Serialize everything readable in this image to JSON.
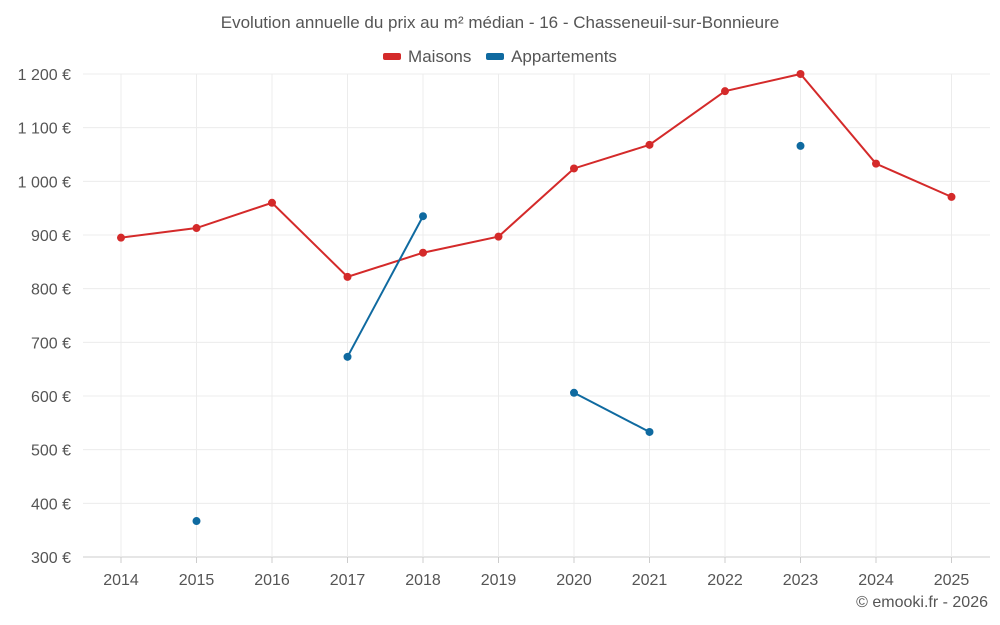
{
  "chart_data": {
    "type": "line",
    "title": "Evolution annuelle du prix au m² médian - 16 - Chasseneuil-sur-Bonnieure",
    "xlabel": "",
    "ylabel": "",
    "categories": [
      "2014",
      "2015",
      "2016",
      "2017",
      "2018",
      "2019",
      "2020",
      "2021",
      "2022",
      "2023",
      "2024",
      "2025"
    ],
    "ylim": [
      300,
      1200
    ],
    "yticks": [
      300,
      400,
      500,
      600,
      700,
      800,
      900,
      1000,
      1100,
      1200
    ],
    "ytick_labels": [
      "300 €",
      "400 €",
      "500 €",
      "600 €",
      "700 €",
      "800 €",
      "900 €",
      "1 000 €",
      "1 100 €",
      "1 200 €"
    ],
    "grid": true,
    "legend_position": "top-center",
    "series": [
      {
        "name": "Maisons",
        "color": "#d42a2a",
        "values": [
          895,
          913,
          960,
          822,
          867,
          897,
          1024,
          1068,
          1168,
          1200,
          1033,
          971
        ]
      },
      {
        "name": "Appartements",
        "color": "#0f6aa0",
        "values": [
          null,
          367,
          null,
          673,
          935,
          null,
          606,
          533,
          null,
          1066,
          null,
          null
        ]
      }
    ]
  },
  "credit": "© emooki.fr - 2026"
}
